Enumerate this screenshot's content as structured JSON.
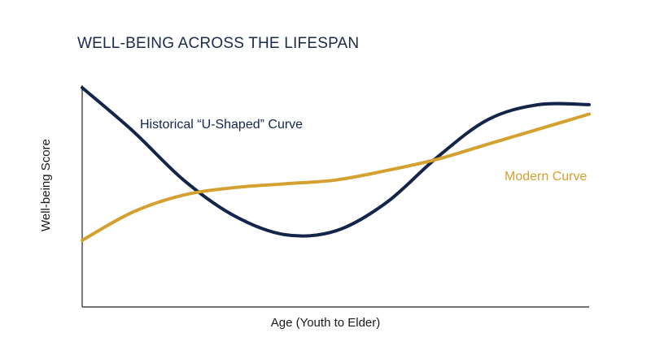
{
  "chart_data": {
    "type": "line",
    "title": "WELL-BEING ACROSS THE LIFESPAN",
    "xlabel": "Age (Youth to Elder)",
    "ylabel": "Well-being Score",
    "xlim": [
      0,
      100
    ],
    "ylim": [
      0,
      100
    ],
    "grid": false,
    "legend": "inline",
    "series": [
      {
        "name": "Historical “U-Shaped” Curve",
        "color": "#14254a",
        "x": [
          0,
          10,
          20,
          30,
          40,
          50,
          60,
          70,
          80,
          90,
          100
        ],
        "y": [
          100,
          77,
          51,
          32,
          22,
          24,
          39,
          63,
          83,
          91,
          91
        ]
      },
      {
        "name": "Modern Curve",
        "color": "#d4a02f",
        "x": [
          0,
          10,
          20,
          30,
          40,
          50,
          60,
          70,
          80,
          90,
          100
        ],
        "y": [
          19,
          34,
          43,
          47,
          49,
          51,
          56,
          62,
          70,
          78,
          86
        ]
      }
    ]
  }
}
